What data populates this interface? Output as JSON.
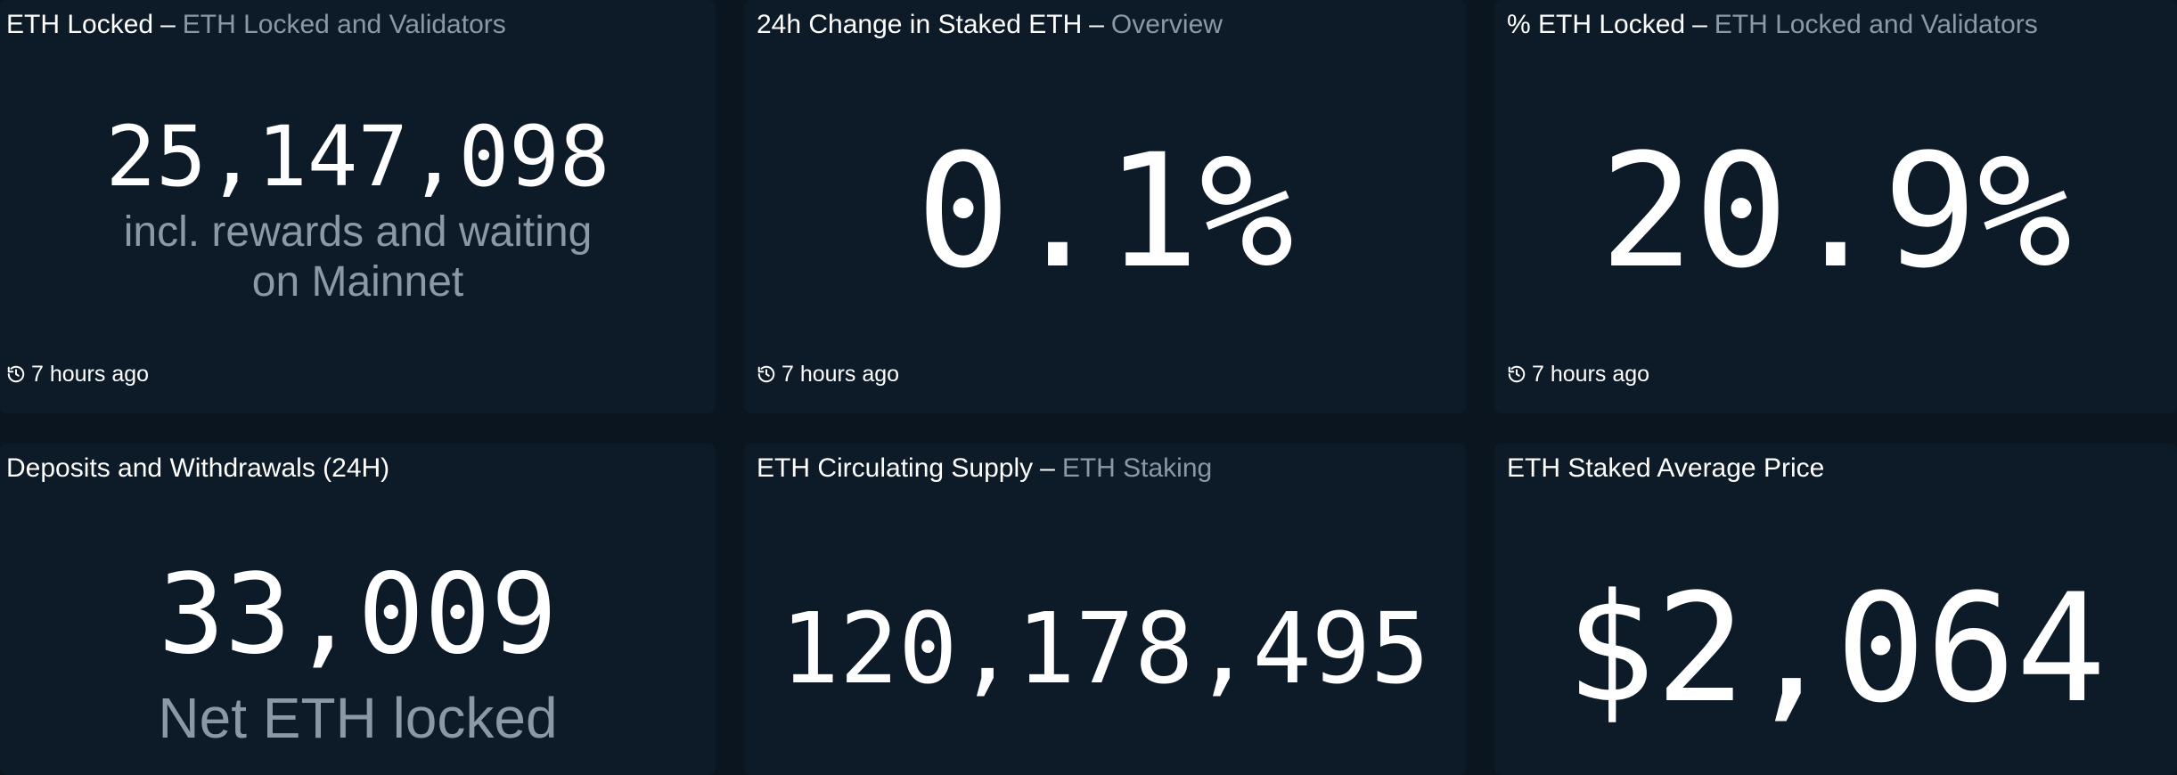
{
  "panels": [
    {
      "title": "ETH Locked",
      "subtitle": "ETH Locked and Validators",
      "value": "25,147,098",
      "caption_line1": "incl. rewards and waiting",
      "caption_line2": "on Mainnet",
      "updated": "7 hours ago",
      "footer_icon": "history-icon"
    },
    {
      "title": "24h Change in Staked ETH",
      "subtitle": "Overview",
      "value": "0.1%",
      "updated": "7 hours ago",
      "footer_icon": "history-icon"
    },
    {
      "title": "% ETH Locked",
      "subtitle": "ETH Locked and Validators",
      "value": "20.9%",
      "updated": "7 hours ago",
      "footer_icon": "history-icon"
    },
    {
      "title": "Deposits and Withdrawals (24H)",
      "value": "33,009",
      "caption": "Net ETH locked"
    },
    {
      "title": "ETH Circulating Supply",
      "subtitle": "ETH Staking",
      "value": "120,178,495"
    },
    {
      "title": "ETH Staked Average Price",
      "value": "$2,064"
    }
  ],
  "colors": {
    "background": "#0a151f",
    "card": "#0d1a27",
    "text": "#ffffff",
    "muted": "#8b98a6"
  }
}
